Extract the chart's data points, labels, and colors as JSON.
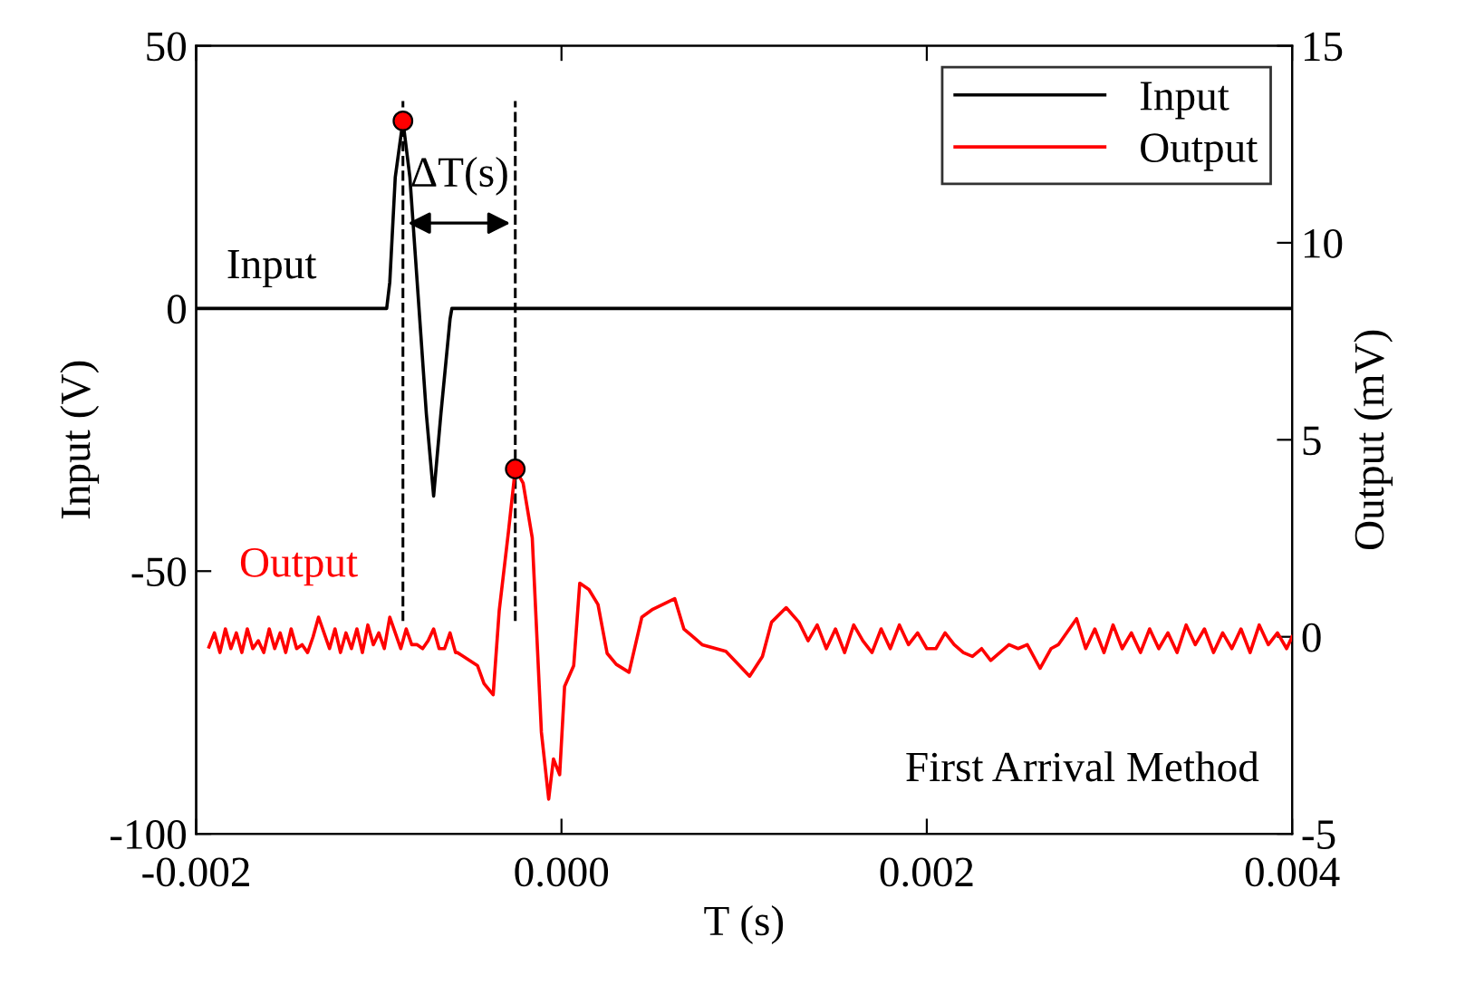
{
  "chart_data": {
    "type": "line",
    "xlabel": "T (s)",
    "ylabel": "Input (V)",
    "y2label": "Output (mV)",
    "xlim": [
      -0.002,
      0.004
    ],
    "xticks": [
      {
        "value": -0.002,
        "label": "-0.002"
      },
      {
        "value": 0,
        "label": "0.000"
      },
      {
        "value": 0.002,
        "label": "0.002"
      },
      {
        "value": 0.004,
        "label": "0.004"
      }
    ],
    "ylim": [
      -100,
      50
    ],
    "yticks": [
      -100,
      -50,
      0,
      50
    ],
    "y2lim": [
      -5,
      15
    ],
    "y2ticks": [
      -5,
      0,
      5,
      10,
      15
    ],
    "legend": "top right",
    "grid": false,
    "series": [
      {
        "name": "Input",
        "color": "#000000",
        "x": [
          -0.002,
          -0.0018,
          -0.0015,
          -0.0012,
          -0.000957,
          -0.00094,
          -0.00091,
          -0.000868,
          -0.00083,
          -0.00078,
          -0.00074,
          -0.0007,
          -0.00066,
          -0.00061,
          -0.0006,
          0.0,
          0.001,
          0.002,
          0.003,
          0.004
        ],
        "values": [
          0,
          0,
          0,
          0,
          0,
          5,
          25,
          35.7,
          25,
          0,
          -20,
          -35.7,
          -20,
          -2,
          0,
          0,
          0,
          0,
          0,
          0
        ]
      },
      {
        "name": "Output",
        "color": "#ff0000",
        "axis": "y2",
        "x": [
          -0.00193,
          -0.0019,
          -0.00187,
          -0.00184,
          -0.00181,
          -0.00178,
          -0.00175,
          -0.00172,
          -0.00169,
          -0.00166,
          -0.00163,
          -0.0016,
          -0.00157,
          -0.00154,
          -0.00151,
          -0.00148,
          -0.00145,
          -0.00142,
          -0.00139,
          -0.00136,
          -0.00133,
          -0.0013,
          -0.00127,
          -0.00124,
          -0.00121,
          -0.00118,
          -0.00115,
          -0.00112,
          -0.00109,
          -0.00106,
          -0.00103,
          -0.001,
          -0.00097,
          -0.00094,
          -0.00091,
          -0.00088,
          -0.00085,
          -0.00082,
          -0.00079,
          -0.00076,
          -0.00073,
          -0.0007,
          -0.00067,
          -0.00064,
          -0.00061,
          -0.00058,
          -0.00057,
          -0.00046,
          -0.000424,
          -0.000374,
          -0.000341,
          -0.00029,
          -0.000253,
          -0.00021,
          -0.00016,
          -0.00011,
          -7e-05,
          -4.4e-05,
          -1e-05,
          1.7e-05,
          6.7e-05,
          0.0001,
          0.00015,
          0.0002,
          0.00025,
          0.0003,
          0.00037,
          0.00044,
          0.0005,
          0.00062,
          0.00067,
          0.00077,
          0.0009,
          0.00103,
          0.0011,
          0.00115,
          0.00123,
          0.0013,
          0.00135,
          0.0014,
          0.00145,
          0.0015,
          0.00155,
          0.0016,
          0.00165,
          0.0017,
          0.00175,
          0.0018,
          0.00185,
          0.0019,
          0.00195,
          0.002,
          0.00205,
          0.0021,
          0.00215,
          0.0022,
          0.00225,
          0.0023,
          0.00235,
          0.0024,
          0.00245,
          0.0025,
          0.00255,
          0.00262,
          0.00268,
          0.00272,
          0.00282,
          0.00287,
          0.00292,
          0.00297,
          0.00302,
          0.00307,
          0.00312,
          0.00317,
          0.00322,
          0.00327,
          0.00332,
          0.00337,
          0.00342,
          0.00347,
          0.00352,
          0.00357,
          0.00362,
          0.00367,
          0.00372,
          0.00377,
          0.00382,
          0.00387,
          0.00392,
          0.00397,
          0.004
        ],
        "values": [
          -0.26,
          0.1,
          -0.4,
          0.2,
          -0.3,
          0.1,
          -0.4,
          0.2,
          -0.3,
          -0.1,
          -0.4,
          0.2,
          -0.3,
          0.1,
          -0.4,
          0.2,
          -0.3,
          -0.2,
          -0.4,
          0.0,
          0.5,
          0.1,
          -0.3,
          0.2,
          -0.4,
          0.1,
          -0.3,
          0.2,
          -0.4,
          0.3,
          -0.2,
          0.1,
          -0.3,
          0.5,
          0.1,
          -0.3,
          0.2,
          -0.2,
          -0.2,
          -0.3,
          -0.1,
          0.2,
          -0.3,
          -0.3,
          0.1,
          -0.4,
          -0.4,
          -0.73,
          -1.19,
          -1.47,
          0.66,
          2.68,
          4.26,
          3.9,
          2.51,
          -2.42,
          -4.12,
          -3.1,
          -3.5,
          -1.26,
          -0.73,
          1.36,
          1.2,
          0.82,
          -0.42,
          -0.7,
          -0.9,
          0.5,
          0.7,
          0.97,
          0.2,
          -0.2,
          -0.37,
          -1.0,
          -0.5,
          0.37,
          0.74,
          0.37,
          -0.1,
          0.3,
          -0.3,
          0.2,
          -0.4,
          0.3,
          -0.1,
          -0.4,
          0.2,
          -0.3,
          0.3,
          -0.2,
          0.1,
          -0.3,
          -0.3,
          0.1,
          -0.2,
          -0.4,
          -0.5,
          -0.3,
          -0.6,
          -0.4,
          -0.2,
          -0.3,
          -0.2,
          -0.8,
          -0.3,
          -0.2,
          0.46,
          -0.3,
          0.2,
          -0.4,
          0.3,
          -0.3,
          0.1,
          -0.4,
          0.2,
          -0.3,
          0.1,
          -0.4,
          0.3,
          -0.2,
          0.2,
          -0.4,
          0.1,
          -0.3,
          0.2,
          -0.4,
          0.3,
          -0.2,
          0.1,
          -0.3,
          0.0
        ]
      },
      {
        "type": "scatter",
        "color": "#ff0000",
        "x": [
          -0.000868
        ],
        "values": [
          35.7
        ]
      },
      {
        "type": "scatter",
        "color": "#ff0000",
        "axis": "y2",
        "x": [
          -0.000253
        ],
        "values": [
          4.26
        ]
      }
    ],
    "ref_lines": [
      {
        "axis": "x",
        "value": -0.000868,
        "line_style": "dashed",
        "color": "#000000"
      },
      {
        "axis": "x",
        "value": -0.000253,
        "line_style": "dashed",
        "color": "#000000"
      }
    ],
    "annotations": [
      "ΔT(s)",
      "First Arrival Method"
    ]
  }
}
